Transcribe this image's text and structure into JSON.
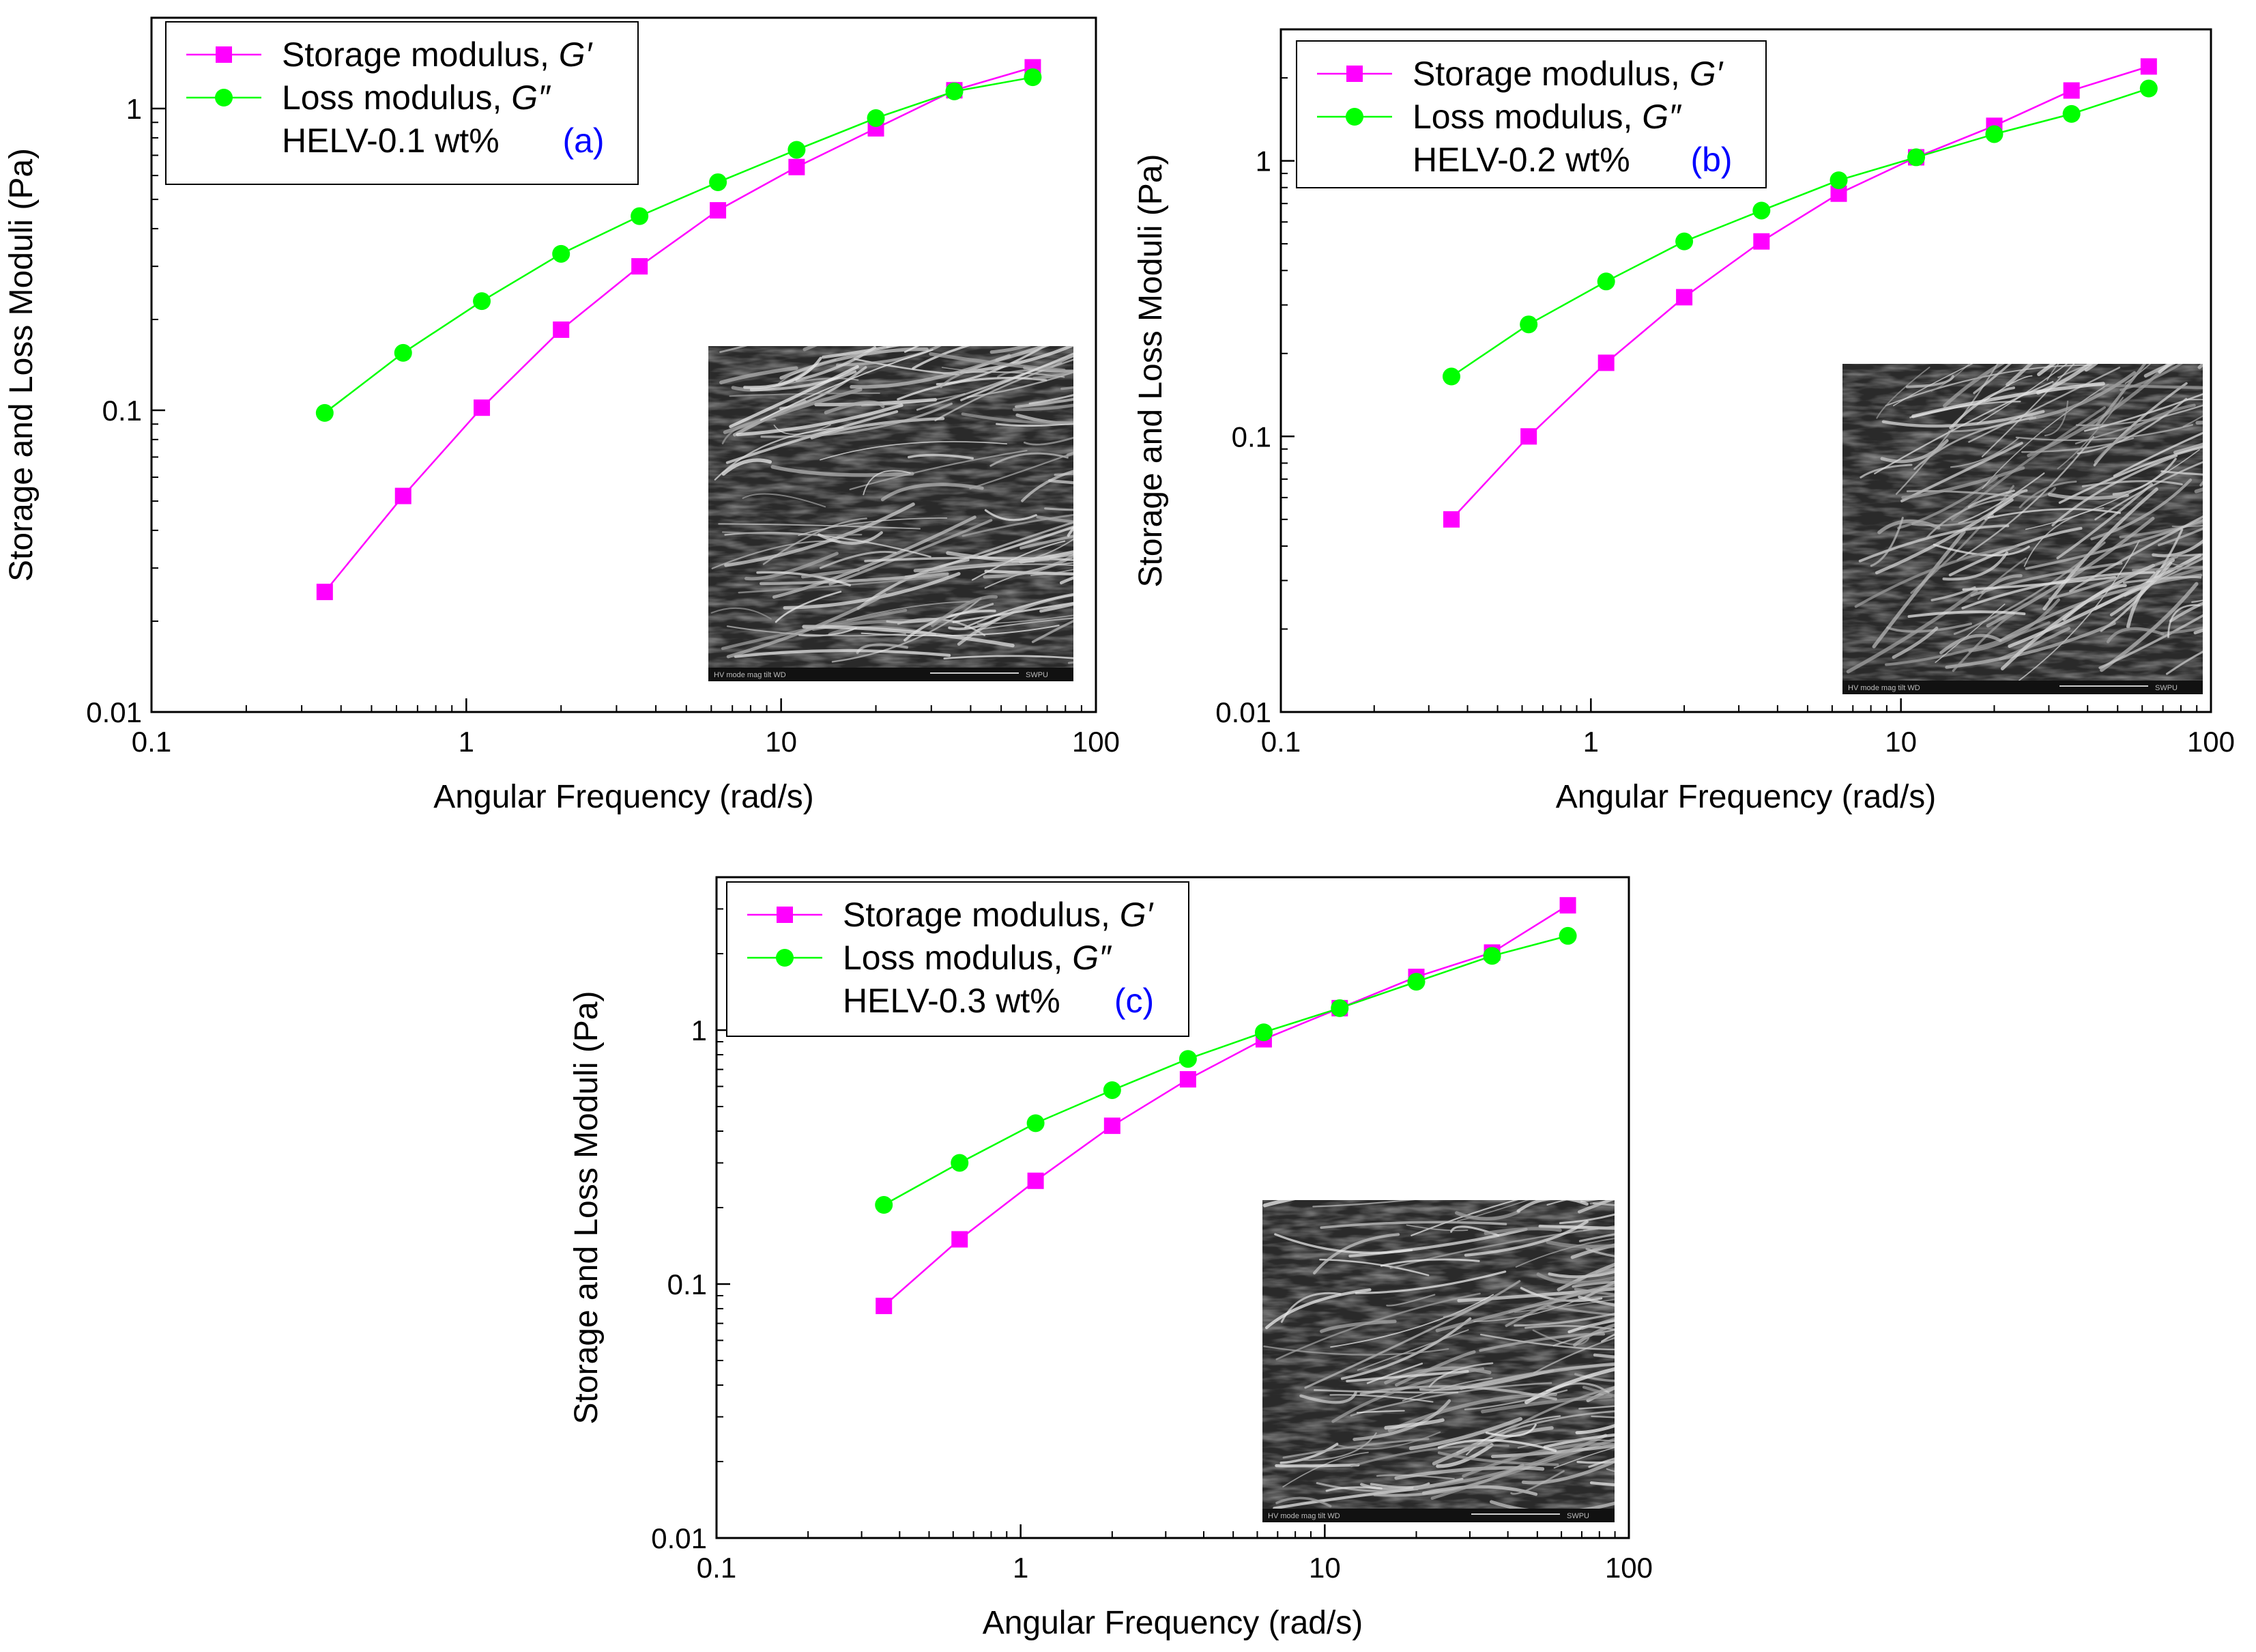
{
  "chart_data": [
    {
      "type": "line",
      "title": "",
      "panel_label": "(a)",
      "sample": "HELV-0.1 wt%",
      "xlabel": "Angular Frequency (rad/s)",
      "ylabel": "Storage and Loss Moduli (Pa)",
      "xscale": "log",
      "yscale": "log",
      "xlim": [
        0.1,
        100
      ],
      "ylim": [
        0.01,
        2
      ],
      "x_ticks": [
        0.1,
        1,
        10,
        100
      ],
      "x_tick_labels": [
        "0.1",
        "1",
        "10",
        "100"
      ],
      "y_ticks": [
        0.01,
        0.1,
        1
      ],
      "y_tick_labels": [
        "0.01",
        "0.1",
        "1"
      ],
      "legend_position": "top-left",
      "x": [
        0.355,
        0.63,
        1.12,
        2.0,
        3.55,
        6.3,
        11.2,
        20.0,
        35.5,
        63.0
      ],
      "series": [
        {
          "name": "Storage modulus, G′",
          "label_main": "Storage modulus, ",
          "label_symbol": "G′",
          "color": "#ff00ff",
          "marker": "square",
          "values": [
            0.025,
            0.052,
            0.102,
            0.185,
            0.3,
            0.46,
            0.64,
            0.86,
            1.15,
            1.37
          ]
        },
        {
          "name": "Loss modulus, G″",
          "label_main": "Loss modulus, ",
          "label_symbol": "G″",
          "color": "#00ff00",
          "marker": "circle",
          "values": [
            0.098,
            0.155,
            0.23,
            0.33,
            0.44,
            0.57,
            0.73,
            0.93,
            1.14,
            1.27
          ]
        }
      ],
      "inset": {
        "kind": "SEM micrograph",
        "caption_left": "HV  mode  mag  tilt  WD",
        "caption_right": "SWPU"
      }
    },
    {
      "type": "line",
      "title": "",
      "panel_label": "(b)",
      "sample": "HELV-0.2 wt%",
      "xlabel": "Angular Frequency (rad/s)",
      "ylabel": "Storage and Loss Moduli (Pa)",
      "xscale": "log",
      "yscale": "log",
      "xlim": [
        0.1,
        100
      ],
      "ylim": [
        0.01,
        3
      ],
      "x_ticks": [
        0.1,
        1,
        10,
        100
      ],
      "x_tick_labels": [
        "0.1",
        "1",
        "10",
        "100"
      ],
      "y_ticks": [
        0.01,
        0.1,
        1
      ],
      "y_tick_labels": [
        "0.01",
        "0.1",
        "1"
      ],
      "legend_position": "top-left",
      "x": [
        0.355,
        0.63,
        1.12,
        2.0,
        3.55,
        6.3,
        11.2,
        20.0,
        35.5,
        63.0
      ],
      "series": [
        {
          "name": "Storage modulus, G′",
          "label_main": "Storage modulus, ",
          "label_symbol": "G′",
          "color": "#ff00ff",
          "marker": "square",
          "values": [
            0.05,
            0.1,
            0.185,
            0.32,
            0.51,
            0.76,
            1.03,
            1.34,
            1.8,
            2.2
          ]
        },
        {
          "name": "Loss modulus, G″",
          "label_main": "Loss modulus, ",
          "label_symbol": "G″",
          "color": "#00ff00",
          "marker": "circle",
          "values": [
            0.165,
            0.255,
            0.365,
            0.51,
            0.66,
            0.85,
            1.03,
            1.25,
            1.48,
            1.83
          ]
        }
      ],
      "inset": {
        "kind": "SEM micrograph",
        "caption_left": "HV  mode  mag  tilt  WD",
        "caption_right": "SWPU"
      }
    },
    {
      "type": "line",
      "title": "",
      "panel_label": "(c)",
      "sample": "HELV-0.3 wt%",
      "xlabel": "Angular Frequency (rad/s)",
      "ylabel": "Storage and Loss Moduli (Pa)",
      "xscale": "log",
      "yscale": "log",
      "xlim": [
        0.1,
        100
      ],
      "ylim": [
        0.01,
        4
      ],
      "x_ticks": [
        0.1,
        1,
        10,
        100
      ],
      "x_tick_labels": [
        "0.1",
        "1",
        "10",
        "100"
      ],
      "y_ticks": [
        0.01,
        0.1,
        1
      ],
      "y_tick_labels": [
        "0.01",
        "0.1",
        "1"
      ],
      "legend_position": "top-left",
      "x": [
        0.355,
        0.63,
        1.12,
        2.0,
        3.55,
        6.3,
        11.2,
        20.0,
        35.5,
        63.0
      ],
      "series": [
        {
          "name": "Storage modulus, G′",
          "label_main": "Storage modulus, ",
          "label_symbol": "G′",
          "color": "#ff00ff",
          "marker": "square",
          "values": [
            0.082,
            0.15,
            0.255,
            0.42,
            0.64,
            0.92,
            1.22,
            1.62,
            2.02,
            3.1
          ]
        },
        {
          "name": "Loss modulus, G″",
          "label_main": "Loss modulus, ",
          "label_symbol": "G″",
          "color": "#00ff00",
          "marker": "circle",
          "values": [
            0.205,
            0.3,
            0.43,
            0.58,
            0.77,
            0.98,
            1.22,
            1.55,
            1.96,
            2.35
          ]
        }
      ],
      "inset": {
        "kind": "SEM micrograph",
        "caption_left": "HV  mode  mag  tilt  WD",
        "caption_right": "SWPU"
      }
    }
  ],
  "colors": {
    "storage": "#ff00ff",
    "loss": "#00ff00",
    "panel_label": "#0000ff",
    "axis": "#000000"
  }
}
